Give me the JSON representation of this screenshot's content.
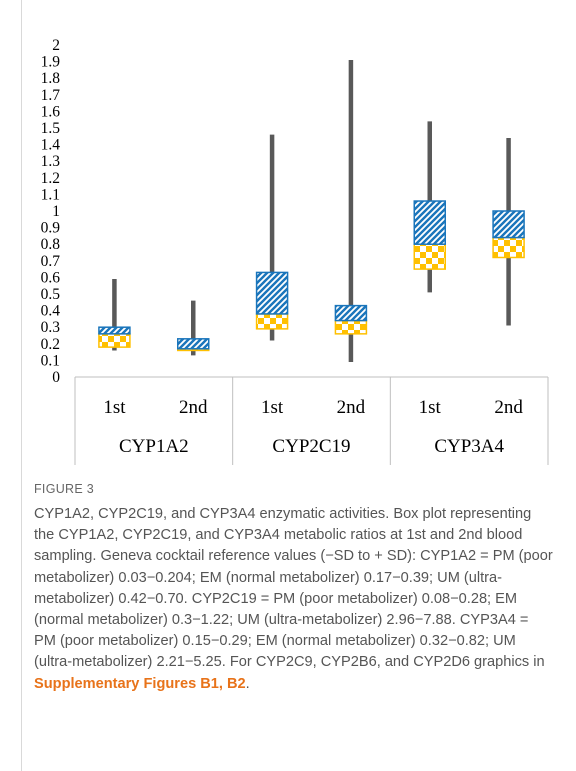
{
  "chart_data": {
    "type": "box",
    "ylim": [
      0,
      2
    ],
    "yticks": [
      "0",
      "0.1",
      "0.2",
      "0.3",
      "0.4",
      "0.5",
      "0.6",
      "0.7",
      "0.8",
      "0.9",
      "1",
      "1.1",
      "1.2",
      "1.3",
      "1.4",
      "1.5",
      "1.6",
      "1.7",
      "1.8",
      "1.9",
      "2"
    ],
    "groups": [
      "CYP1A2",
      "CYP2C19",
      "CYP3A4"
    ],
    "categories": [
      "1st",
      "2nd",
      "1st",
      "2nd",
      "1st",
      "2nd"
    ],
    "boxes": [
      {
        "group": "CYP1A2",
        "sampling": "1st",
        "min": 0.16,
        "q1": 0.18,
        "median": 0.26,
        "q3": 0.3,
        "max": 0.59
      },
      {
        "group": "CYP1A2",
        "sampling": "2nd",
        "min": 0.13,
        "q1": 0.16,
        "median": 0.17,
        "q3": 0.23,
        "max": 0.46
      },
      {
        "group": "CYP2C19",
        "sampling": "1st",
        "min": 0.22,
        "q1": 0.29,
        "median": 0.38,
        "q3": 0.63,
        "max": 1.46
      },
      {
        "group": "CYP2C19",
        "sampling": "2nd",
        "min": 0.09,
        "q1": 0.26,
        "median": 0.34,
        "q3": 0.43,
        "max": 1.91
      },
      {
        "group": "CYP3A4",
        "sampling": "1st",
        "min": 0.51,
        "q1": 0.65,
        "median": 0.8,
        "q3": 1.06,
        "max": 1.54
      },
      {
        "group": "CYP3A4",
        "sampling": "2nd",
        "min": 0.31,
        "q1": 0.72,
        "median": 0.84,
        "q3": 1.0,
        "max": 1.44
      }
    ],
    "colors": {
      "upper": "#1a75bb",
      "lower": "#ffc000",
      "whisker": "#595959"
    },
    "grid": false,
    "legend": "none"
  },
  "caption": {
    "label": "FIGURE 3",
    "text": "CYP1A2, CYP2C19, and CYP3A4 enzymatic activities. Box plot representing the CYP1A2, CYP2C19, and CYP3A4 metabolic ratios at 1st and 2nd blood sampling. Geneva cocktail reference values (−SD to + SD): CYP1A2 = PM (poor metabolizer) 0.03−0.204; EM (normal metabolizer) 0.17−0.39; UM (ultra-metabolizer) 0.42−0.70. CYP2C19 = PM (poor metabolizer) 0.08−0.28; EM (normal metabolizer) 0.3−1.22; UM (ultra-metabolizer) 2.96−7.88. CYP3A4 = PM (poor metabolizer) 0.15−0.29; EM (normal metabolizer) 0.32−0.82; UM (ultra-metabolizer) 2.21−5.25. For CYP2C9, CYP2B6, and CYP2D6 graphics in ",
    "link": "Supplementary Figures B1, B2",
    "end": "."
  }
}
